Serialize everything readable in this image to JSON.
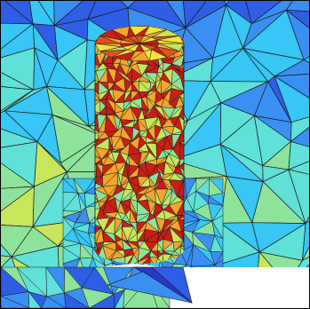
{
  "figure": {
    "subject": "",
    "colormap": {
      "name": "jet",
      "stops": [
        "#2a37c9",
        "#2f5ee6",
        "#3a8ff2",
        "#37c6f5",
        "#5fe0d8",
        "#8ee39a",
        "#c7e65a",
        "#f5e33a",
        "#f3a62b",
        "#e0521f",
        "#c91f14"
      ]
    },
    "edge_color": "#1a1a1a",
    "background_color": "#ffffff"
  }
}
